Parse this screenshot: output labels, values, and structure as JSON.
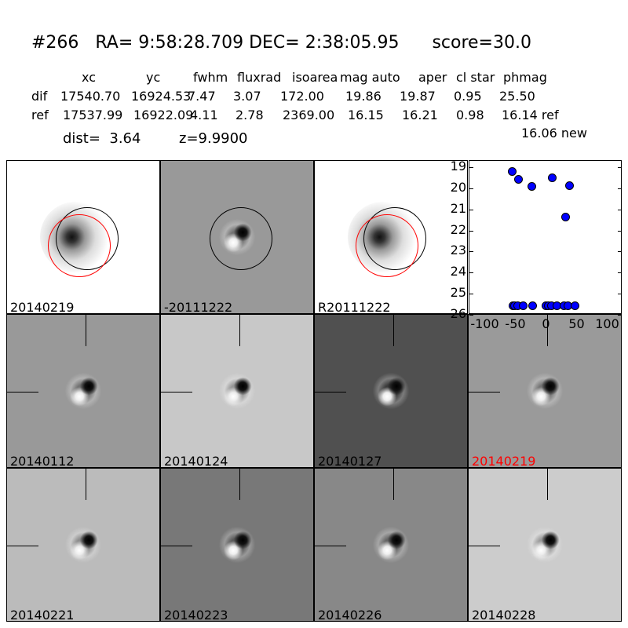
{
  "header": {
    "title": "#266   RA= 9:58:28.709 DEC= 2:38:05.95      score=30.0"
  },
  "table": {
    "columns": [
      "xc",
      "yc",
      "fwhm",
      "fluxrad",
      "isoarea",
      "mag auto",
      "aper",
      "cl star",
      "phmag"
    ],
    "rows": [
      {
        "label": "dif",
        "values": [
          "17540.70",
          "16924.53",
          "7.47",
          "3.07",
          "172.00",
          "19.86",
          "19.87",
          "0.95",
          "25.50"
        ]
      },
      {
        "label": "ref",
        "values": [
          "17537.99",
          "16922.09",
          "4.11",
          "2.78",
          "2369.00",
          "16.15",
          "16.21",
          "0.98",
          "16.14 ref"
        ]
      }
    ],
    "extra": "16.06 new",
    "dist": "dist=  3.64",
    "z": "z=9.9900"
  },
  "panels": [
    {
      "label": "20140219",
      "bg": "#ffffff",
      "style": "ref",
      "color": "#000000"
    },
    {
      "label": "-20111222",
      "bg": "#999999",
      "style": "dipole",
      "color": "#000000"
    },
    {
      "label": "R20111222",
      "bg": "#ffffff",
      "style": "ref",
      "color": "#000000"
    },
    null,
    {
      "label": "20140112",
      "bg": "#999999",
      "style": "dipole",
      "color": "#000000"
    },
    {
      "label": "20140124",
      "bg": "#c8c8c8",
      "style": "dipole",
      "color": "#000000"
    },
    {
      "label": "20140127",
      "bg": "#505050",
      "style": "dipole",
      "color": "#000000"
    },
    {
      "label": "20140219",
      "bg": "#9a9a9a",
      "style": "dipole",
      "color": "#ff0000"
    },
    {
      "label": "20140221",
      "bg": "#bbbbbb",
      "style": "dipole",
      "color": "#000000"
    },
    {
      "label": "20140223",
      "bg": "#787878",
      "style": "dipole",
      "color": "#000000"
    },
    {
      "label": "20140226",
      "bg": "#888888",
      "style": "dipole",
      "color": "#000000"
    },
    {
      "label": "20140228",
      "bg": "#cccccc",
      "style": "dipole",
      "color": "#000000"
    }
  ],
  "chart_data": {
    "type": "scatter",
    "xlim": [
      -125,
      125
    ],
    "ylim": [
      26,
      18.7
    ],
    "xticks": [
      "-100",
      "-50",
      "0",
      "50",
      "100"
    ],
    "xtick_values": [
      -100,
      -50,
      0,
      50,
      100
    ],
    "yticks": [
      "19",
      "20",
      "21",
      "22",
      "23",
      "24",
      "25",
      "26"
    ],
    "ytick_values": [
      19,
      20,
      21,
      22,
      23,
      24,
      25,
      26
    ],
    "marker_color": "#0000ff",
    "points": [
      [
        -56,
        19.2
      ],
      [
        -45,
        19.55
      ],
      [
        -24,
        19.9
      ],
      [
        9,
        19.5
      ],
      [
        38,
        19.85
      ],
      [
        32,
        21.35
      ],
      [
        -55,
        25.55
      ],
      [
        -52,
        25.55
      ],
      [
        -47,
        25.55
      ],
      [
        -38,
        25.55
      ],
      [
        -23,
        25.55
      ],
      [
        -1,
        25.55
      ],
      [
        3,
        25.55
      ],
      [
        8,
        25.55
      ],
      [
        17,
        25.55
      ],
      [
        29,
        25.55
      ],
      [
        35,
        25.55
      ],
      [
        47,
        25.55
      ]
    ]
  }
}
